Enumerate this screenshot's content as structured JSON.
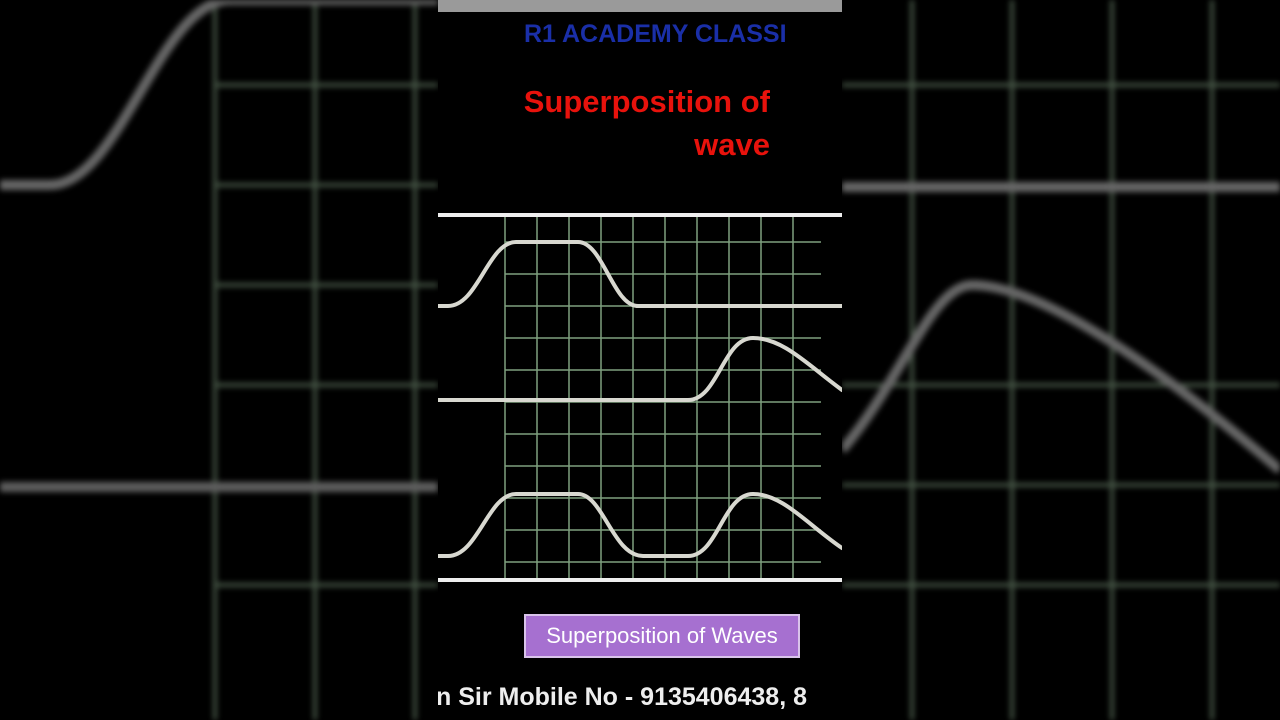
{
  "header": {
    "watermark": "R1 ACADEMY CLASSI"
  },
  "title": {
    "lines": [
      "Superposition of",
      "wave"
    ]
  },
  "caption": "Superposition of Waves",
  "footer": "n Sir Mobile No - 9135406438, 8"
}
